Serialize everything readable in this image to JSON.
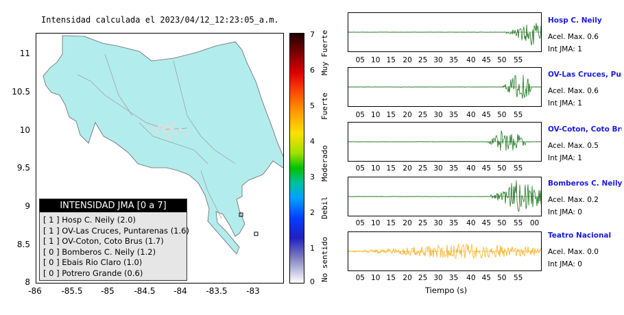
{
  "map": {
    "title": "Intensidad calculada el 2023/04/12_12:23:05_a.m.",
    "y_ticks": [
      "11",
      "10.5",
      "10",
      "9.5",
      "9",
      "8.5",
      "8"
    ],
    "x_ticks": [
      "-86",
      "-85.5",
      "-85",
      "-84.5",
      "-84",
      "-83.5",
      "-83"
    ],
    "land_color": "#b3ecec"
  },
  "legend": {
    "title": "INTENSIDAD JMA [0 a 7]",
    "items": [
      "[ 1 ]  Hosp C. Neily (2.0)",
      "[ 1 ]  OV-Las Cruces, Puntarenas (1.6)",
      "[ 1 ]  OV-Coton, Coto Brus (1.7)",
      "[ 0 ]  Bomberos C. Neily (1.2)",
      "[ 0 ]  Ebais Rio Claro (1.0)",
      "[ 0 ]  Potrero Grande (0.6)"
    ]
  },
  "colorbar": {
    "ticks": [
      "7",
      "6",
      "5",
      "4",
      "3",
      "2",
      "1",
      "0"
    ],
    "labels": [
      "Muy Fuerte",
      "Fuerte",
      "Moderado",
      "Debil",
      "No sentido"
    ]
  },
  "traces": [
    {
      "name": "Hosp C. Neily",
      "accel": "Acel. Max. 0.6",
      "jma": "Int JMA: 1",
      "ticks": [
        "05",
        "10",
        "15",
        "20",
        "25",
        "30",
        "35",
        "40",
        "45",
        "50",
        "55"
      ],
      "color": "#006400"
    },
    {
      "name": "OV-Las Cruces, Puntarenas",
      "accel": "Acel. Max. 0.6",
      "jma": "Int JMA: 1",
      "ticks": [
        "05",
        "10",
        "15",
        "20",
        "25",
        "30",
        "35",
        "40",
        "45",
        "50",
        "55"
      ],
      "color": "#006400"
    },
    {
      "name": "OV-Coton, Coto Brus",
      "accel": "Acel. Max. 0.5",
      "jma": "Int JMA: 1",
      "ticks": [
        "05",
        "10",
        "15",
        "20",
        "25",
        "30",
        "35",
        "40",
        "45",
        "50",
        "55"
      ],
      "color": "#006400"
    },
    {
      "name": "Bomberos C. Neily",
      "accel": "Acel. Max. 0.2",
      "jma": "Int JMA: 0",
      "ticks": [
        "05",
        "10",
        "15",
        "20",
        "25",
        "30",
        "35",
        "40",
        "45",
        "50",
        "55",
        "00"
      ],
      "color": "#006400"
    },
    {
      "name": "Teatro Nacional",
      "accel": "Acel. Max. 0.0",
      "jma": "Int JMA: 0",
      "ticks": [
        "05",
        "10",
        "15",
        "20",
        "25",
        "30",
        "35",
        "40",
        "45",
        "50",
        "55"
      ],
      "color": "#ffa500"
    }
  ],
  "time_axis_label": "Tiempo (s)"
}
